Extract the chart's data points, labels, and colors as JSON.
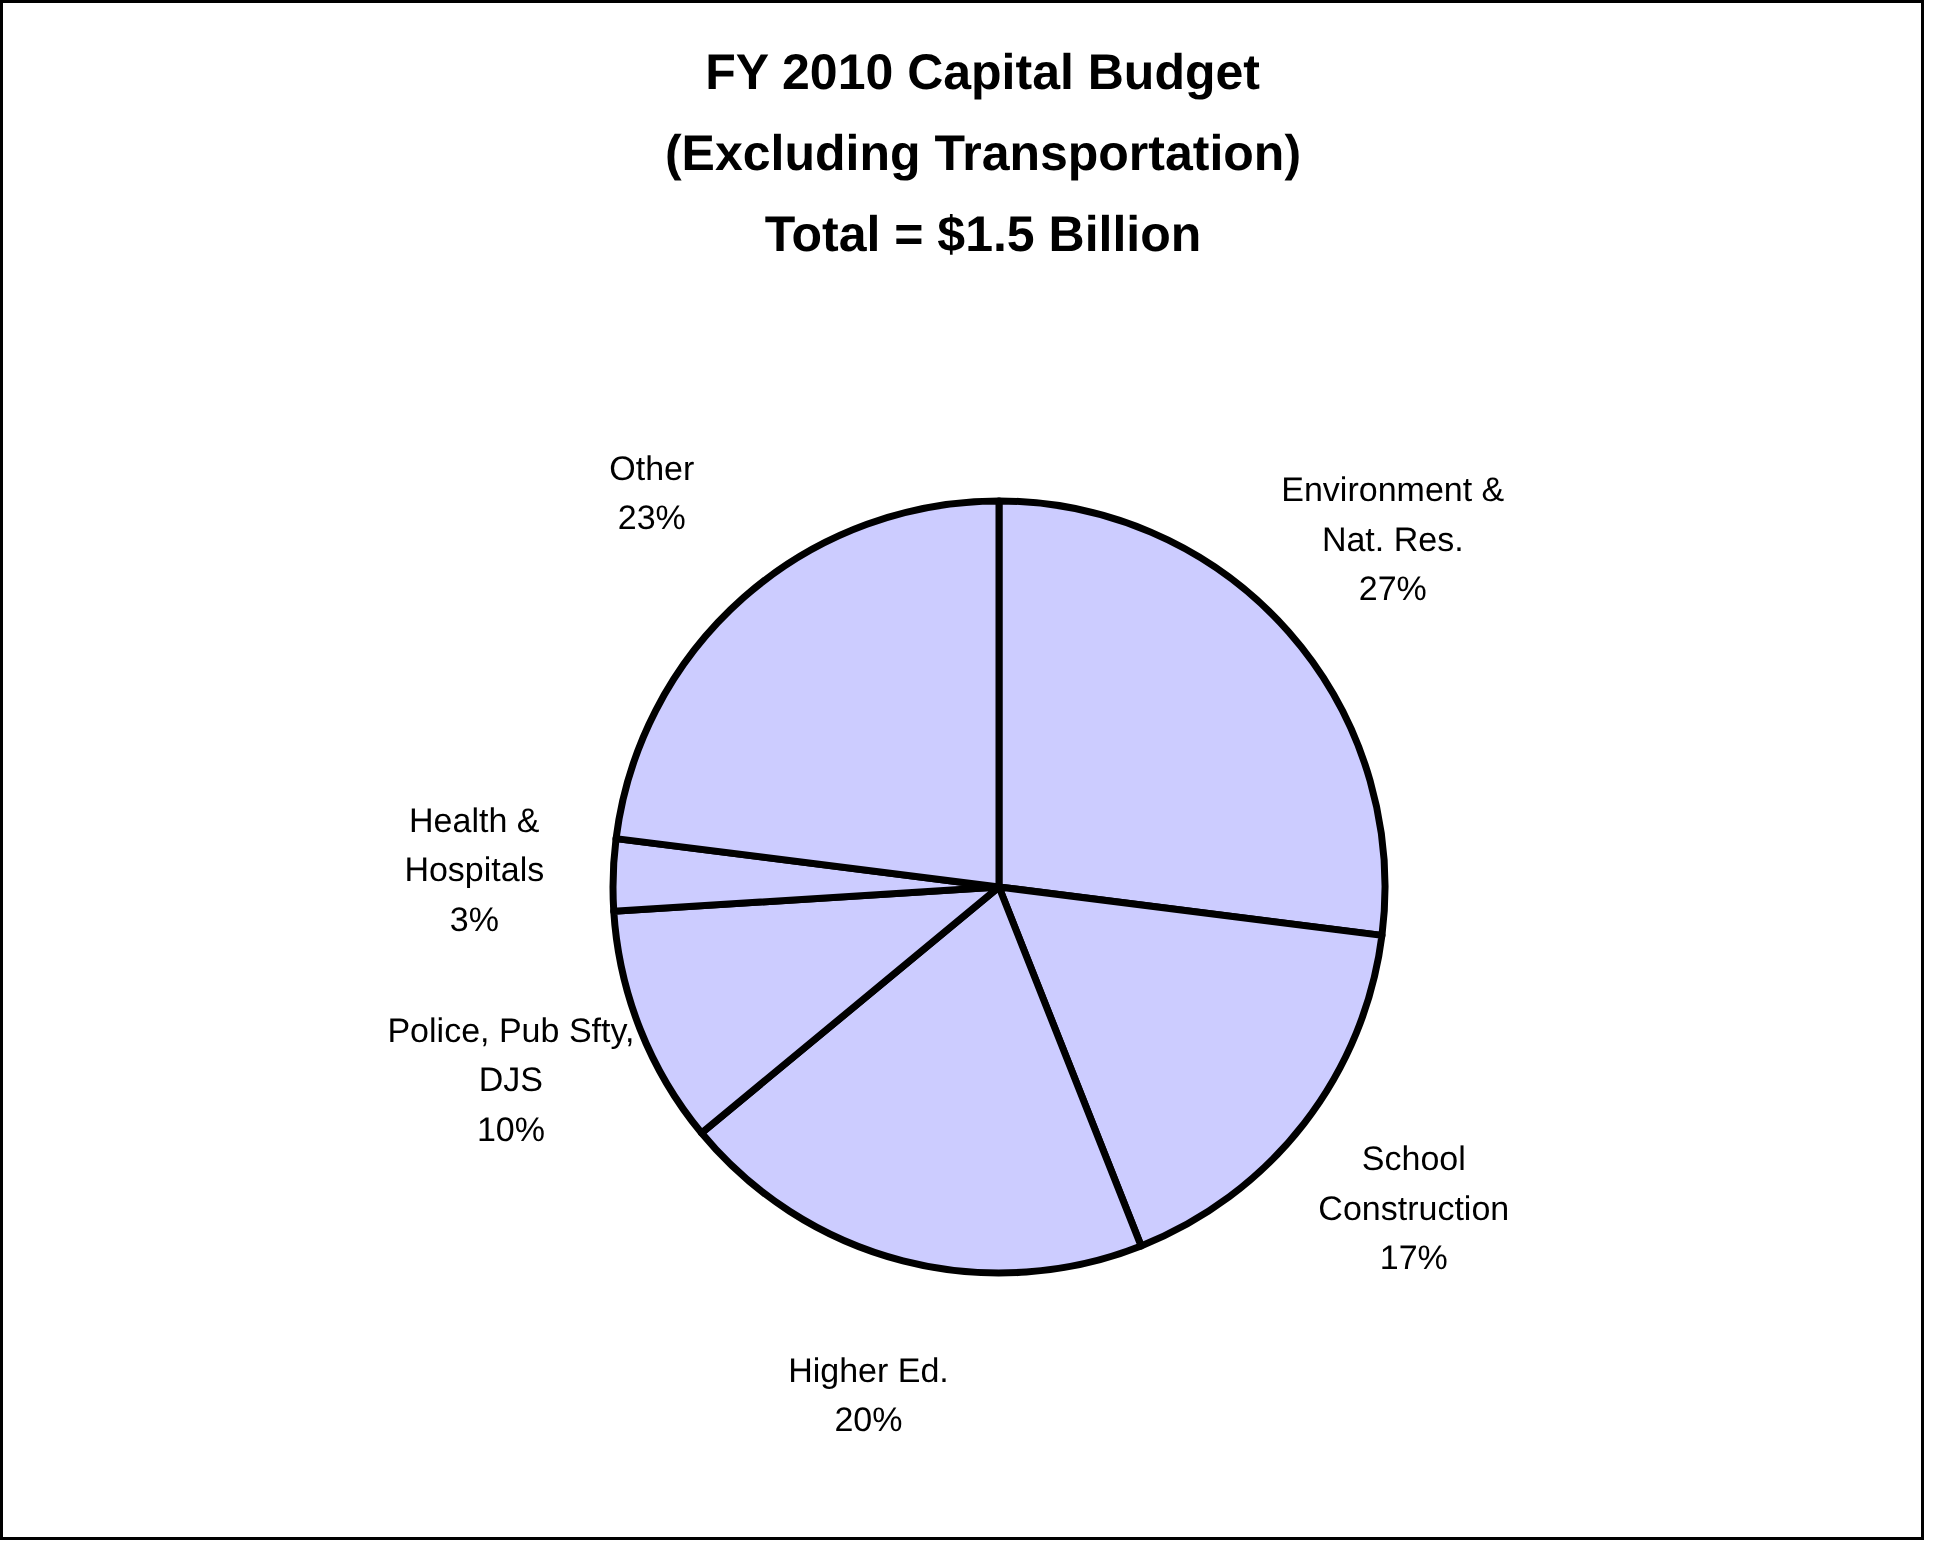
{
  "chart_data": {
    "type": "pie",
    "title": "FY 2010 Capital Budget\n(Excluding Transportation)\nTotal = $1.5 Billion",
    "categories": [
      "Environment & Nat. Res.",
      "School Construction",
      "Higher Ed.",
      "Police, Pub Sfty, DJS",
      "Health & Hospitals",
      "Other"
    ],
    "values": [
      27,
      17,
      20,
      10,
      3,
      23
    ],
    "colors": [
      "#ccccff",
      "#ccccff",
      "#ccccff",
      "#ccccff",
      "#ccccff",
      "#ccccff"
    ],
    "value_labels": [
      "27%",
      "17%",
      "20%",
      "10%",
      "3%",
      "23%"
    ]
  }
}
